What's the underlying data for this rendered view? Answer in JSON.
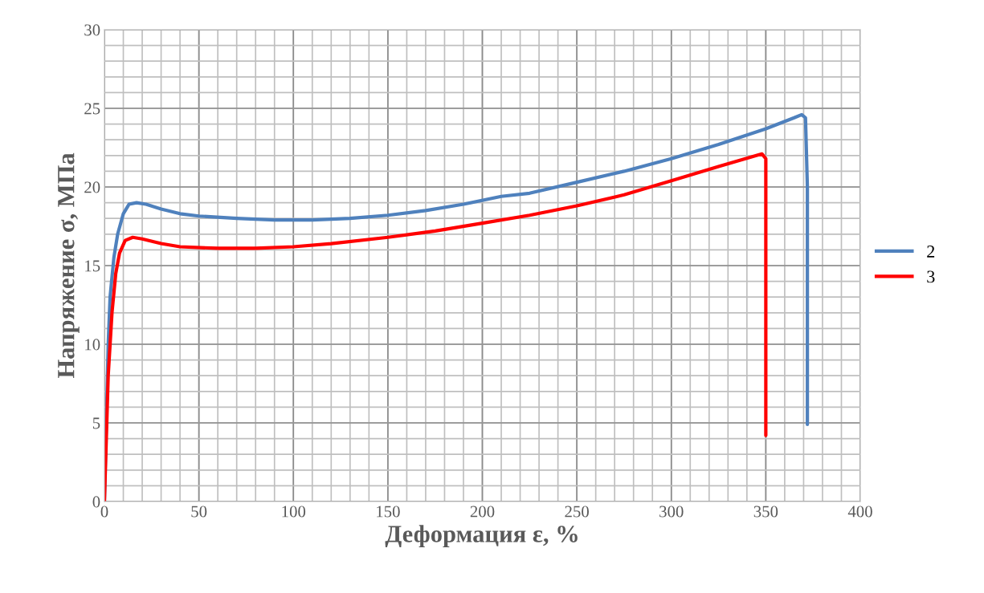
{
  "chart_data": {
    "type": "line",
    "xlabel": "Деформация ε, %",
    "ylabel": "Напряжение σ, МПа",
    "xlim": [
      0,
      400
    ],
    "xticks": [
      0,
      50,
      100,
      150,
      200,
      250,
      300,
      350,
      400
    ],
    "ylim": [
      0,
      30
    ],
    "yticks": [
      0,
      5,
      10,
      15,
      20,
      25,
      30
    ],
    "grid": true,
    "legend": "right",
    "marker": "none",
    "line_style": "solid",
    "series": [
      {
        "name": "2",
        "color": "#4f81bd",
        "x": [
          0,
          1,
          2,
          3,
          5,
          7,
          10,
          13,
          17,
          22,
          30,
          40,
          50,
          70,
          90,
          110,
          130,
          150,
          170,
          190,
          210,
          225,
          250,
          275,
          300,
          325,
          350,
          365,
          369,
          371,
          372,
          372
        ],
        "values": [
          0,
          5,
          10,
          13,
          15.5,
          17,
          18.3,
          18.9,
          19.0,
          18.9,
          18.6,
          18.3,
          18.15,
          18.0,
          17.9,
          17.9,
          18.0,
          18.2,
          18.5,
          18.9,
          19.4,
          19.6,
          20.3,
          21.0,
          21.8,
          22.7,
          23.7,
          24.4,
          24.6,
          24.4,
          20,
          4.9
        ]
      },
      {
        "name": "3",
        "color": "#ff0000",
        "x": [
          0,
          1,
          2,
          4,
          6,
          8,
          11,
          15,
          20,
          30,
          40,
          60,
          80,
          100,
          120,
          150,
          175,
          200,
          225,
          250,
          275,
          300,
          325,
          345,
          348,
          350,
          350,
          350
        ],
        "values": [
          0,
          4,
          8,
          12,
          14.5,
          15.8,
          16.6,
          16.8,
          16.7,
          16.4,
          16.2,
          16.1,
          16.1,
          16.2,
          16.4,
          16.8,
          17.2,
          17.7,
          18.2,
          18.8,
          19.5,
          20.4,
          21.3,
          22.0,
          22.1,
          21.8,
          15,
          4.2
        ]
      }
    ]
  }
}
